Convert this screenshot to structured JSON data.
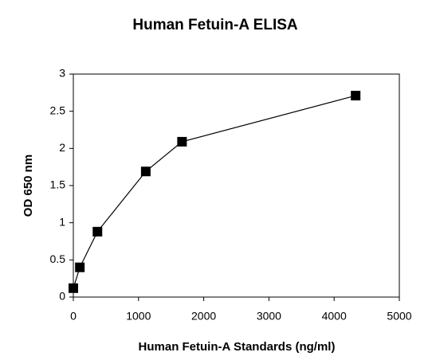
{
  "chart_data": {
    "type": "line",
    "title": "Human Fetuin-A ELISA",
    "x_label": "Human Fetuin-A Standards (ng/ml)",
    "y_label": "OD 650 nm",
    "x": [
      0,
      100,
      370,
      1111,
      1667,
      4330
    ],
    "values": [
      0.12,
      0.4,
      0.88,
      1.69,
      2.09,
      2.71
    ],
    "color": "#000000",
    "xlim": [
      0,
      5000
    ],
    "xticks": [
      0,
      1000,
      2000,
      3000,
      4000,
      5000
    ],
    "ylim": [
      0,
      3
    ],
    "yticks": [
      0,
      0.5,
      1,
      1.5,
      2,
      2.5,
      3
    ],
    "grid": false
  }
}
